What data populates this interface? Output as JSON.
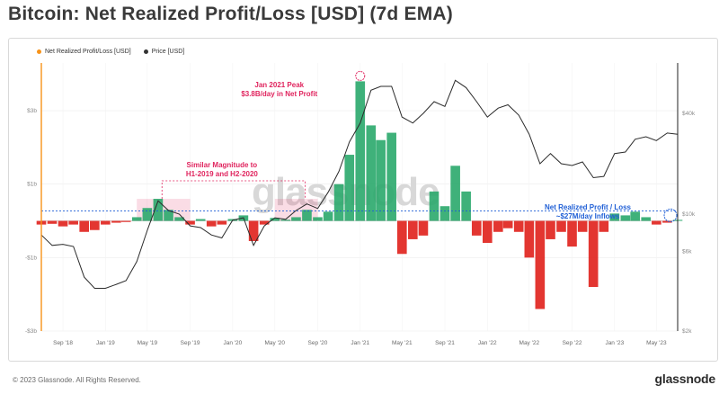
{
  "title": "Bitcoin: Net Realized Profit/Loss [USD] (7d EMA)",
  "legend": [
    {
      "label": "Net Realized Profit/Loss [USD]",
      "color": "#f7931a"
    },
    {
      "label": "Price [USD]",
      "color": "#333333"
    }
  ],
  "watermark": "glassnode",
  "footer": {
    "copyright": "© 2023 Glassnode. All Rights Reserved.",
    "brand": "glassnode"
  },
  "annotations": {
    "peak_line1": "Jan 2021 Peak",
    "peak_line2": "$3.8B/day in Net Profit",
    "similar_line1": "Similar Magnitude to",
    "similar_line2": "H1-2019 and H2-2020",
    "inflow_line1": "Net Realized Profit / Loss",
    "inflow_line2": "~$27M/day Inflows"
  },
  "colors": {
    "profit": "#2aa86b",
    "loss": "#e0201b",
    "price": "#2b2b2b",
    "axis_accent": "#f7931a",
    "highlight": "#e0245e",
    "inflow_line": "#1f5fd6"
  },
  "chart_data": {
    "type": "bar",
    "series": [
      {
        "name": "Net Realized Profit/Loss [USD]",
        "axis": "left",
        "unit": "USD/day",
        "x": [
          "2018-07-01",
          "2018-08-01",
          "2018-09-01",
          "2018-10-01",
          "2018-11-01",
          "2018-12-01",
          "2019-01-01",
          "2019-02-01",
          "2019-03-01",
          "2019-04-01",
          "2019-05-01",
          "2019-06-01",
          "2019-07-01",
          "2019-08-01",
          "2019-09-01",
          "2019-10-01",
          "2019-11-01",
          "2019-12-01",
          "2020-01-01",
          "2020-02-01",
          "2020-03-01",
          "2020-04-01",
          "2020-05-01",
          "2020-06-01",
          "2020-07-01",
          "2020-08-01",
          "2020-09-01",
          "2020-10-01",
          "2020-11-01",
          "2020-12-01",
          "2021-01-01",
          "2021-02-01",
          "2021-03-01",
          "2021-04-01",
          "2021-05-01",
          "2021-06-01",
          "2021-07-01",
          "2021-08-01",
          "2021-09-01",
          "2021-10-01",
          "2021-11-01",
          "2021-12-01",
          "2022-01-01",
          "2022-02-01",
          "2022-03-01",
          "2022-04-01",
          "2022-05-01",
          "2022-06-01",
          "2022-07-01",
          "2022-08-01",
          "2022-09-01",
          "2022-10-01",
          "2022-11-01",
          "2022-12-01",
          "2023-01-01",
          "2023-02-01",
          "2023-03-01",
          "2023-04-01",
          "2023-05-01",
          "2023-06-01",
          "2023-07-01"
        ],
        "values": [
          -100000000,
          -80000000,
          -150000000,
          -100000000,
          -300000000,
          -250000000,
          -100000000,
          -50000000,
          -30000000,
          100000000,
          350000000,
          600000000,
          300000000,
          100000000,
          -100000000,
          50000000,
          -150000000,
          -100000000,
          50000000,
          150000000,
          -550000000,
          -100000000,
          80000000,
          30000000,
          100000000,
          300000000,
          100000000,
          250000000,
          1000000000,
          1800000000,
          3800000000,
          2600000000,
          2200000000,
          2400000000,
          -900000000,
          -500000000,
          -400000000,
          800000000,
          400000000,
          1500000000,
          800000000,
          -400000000,
          -600000000,
          -300000000,
          -200000000,
          -300000000,
          -1000000000,
          -2400000000,
          -500000000,
          -300000000,
          -700000000,
          -300000000,
          -1800000000,
          -300000000,
          200000000,
          150000000,
          250000000,
          100000000,
          -100000000,
          -50000000,
          27000000
        ]
      },
      {
        "name": "Price [USD]",
        "axis": "right",
        "unit": "USD",
        "x": [
          "2018-07-01",
          "2018-08-01",
          "2018-09-01",
          "2018-10-01",
          "2018-11-01",
          "2018-12-01",
          "2019-01-01",
          "2019-02-01",
          "2019-03-01",
          "2019-04-01",
          "2019-05-01",
          "2019-06-01",
          "2019-07-01",
          "2019-08-01",
          "2019-09-01",
          "2019-10-01",
          "2019-11-01",
          "2019-12-01",
          "2020-01-01",
          "2020-02-01",
          "2020-03-01",
          "2020-04-01",
          "2020-05-01",
          "2020-06-01",
          "2020-07-01",
          "2020-08-01",
          "2020-09-01",
          "2020-10-01",
          "2020-11-01",
          "2020-12-01",
          "2021-01-01",
          "2021-02-01",
          "2021-03-01",
          "2021-04-01",
          "2021-05-01",
          "2021-06-01",
          "2021-07-01",
          "2021-08-01",
          "2021-09-01",
          "2021-10-01",
          "2021-11-01",
          "2021-12-01",
          "2022-01-01",
          "2022-02-01",
          "2022-03-01",
          "2022-04-01",
          "2022-05-01",
          "2022-06-01",
          "2022-07-01",
          "2022-08-01",
          "2022-09-01",
          "2022-10-01",
          "2022-11-01",
          "2022-12-01",
          "2023-01-01",
          "2023-02-01",
          "2023-03-01",
          "2023-04-01",
          "2023-05-01",
          "2023-06-01",
          "2023-07-01"
        ],
        "values": [
          7500,
          6500,
          6600,
          6400,
          4200,
          3600,
          3600,
          3800,
          4000,
          5200,
          8000,
          12000,
          10500,
          10000,
          8500,
          8300,
          7500,
          7200,
          9200,
          9500,
          6500,
          8500,
          9500,
          9300,
          10500,
          11500,
          10800,
          13500,
          18000,
          27000,
          35000,
          55000,
          58000,
          58000,
          38000,
          35000,
          40000,
          47000,
          44000,
          63000,
          57000,
          47000,
          38000,
          43000,
          45000,
          39000,
          30000,
          20000,
          23000,
          20000,
          19500,
          20500,
          16500,
          16800,
          23000,
          23500,
          28000,
          29000,
          27500,
          30500,
          30000
        ]
      }
    ],
    "y_left": {
      "ticks": [
        "$3b",
        "$1b",
        "-$1b",
        "-$3b"
      ],
      "range": [
        -3000000000,
        4300000000
      ]
    },
    "y_right": {
      "scale": "log",
      "ticks": [
        "$40k",
        "$10k",
        "$6k",
        "$2k"
      ],
      "range": [
        2000,
        80000
      ]
    },
    "x_ticks": [
      "Sep '18",
      "Jan '19",
      "May '19",
      "Sep '19",
      "Jan '20",
      "May '20",
      "Sep '20",
      "Jan '21",
      "May '21",
      "Sep '21",
      "Jan '22",
      "May '22",
      "Sep '22",
      "Jan '23",
      "May '23"
    ],
    "inflow_value_usd_per_day": 27000000,
    "legend_position": "top-left",
    "grid": true
  }
}
